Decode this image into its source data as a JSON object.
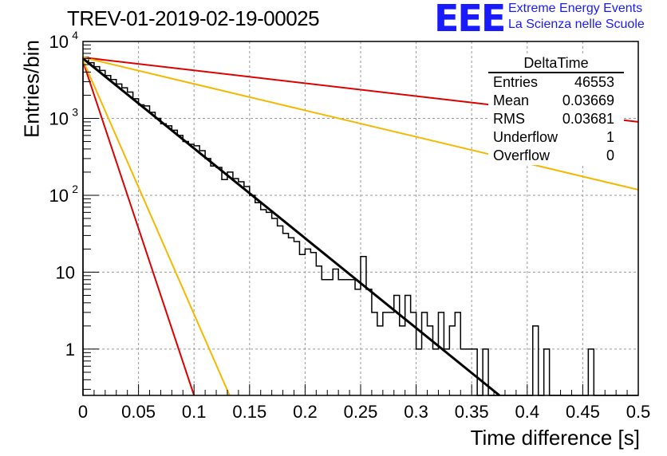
{
  "chart_data": {
    "type": "histogram",
    "title": "TREV-01-2019-02-19-00025",
    "xlabel": "Time difference [s]",
    "ylabel": "Entries/bin",
    "xlim": [
      0,
      0.5
    ],
    "ylim": [
      0.25,
      10000
    ],
    "yscale": "log",
    "grid": true,
    "x_ticks": [
      "0",
      "0.05",
      "0.1",
      "0.15",
      "0.2",
      "0.25",
      "0.3",
      "0.35",
      "0.4",
      "0.45",
      "0.5"
    ],
    "y_ticks": [
      {
        "value": 1,
        "label": "1"
      },
      {
        "value": 10,
        "label": "10"
      },
      {
        "value": 100,
        "label": "10",
        "exp": "2"
      },
      {
        "value": 1000,
        "label": "10",
        "exp": "3"
      },
      {
        "value": 10000,
        "label": "10",
        "exp": "4"
      }
    ],
    "histogram": {
      "bin_width": 0.005,
      "counts": [
        6200,
        5300,
        4700,
        4200,
        3600,
        3200,
        2800,
        2500,
        2200,
        1800,
        1500,
        1450,
        1200,
        1000,
        850,
        800,
        700,
        600,
        500,
        460,
        440,
        380,
        300,
        240,
        230,
        160,
        200,
        165,
        150,
        130,
        100,
        80,
        65,
        60,
        50,
        40,
        32,
        28,
        25,
        17,
        20,
        18,
        12,
        8,
        8,
        11,
        8,
        8,
        8,
        6,
        16,
        6,
        3,
        2,
        3,
        3,
        5,
        2,
        5,
        3,
        1,
        3,
        2,
        1,
        3,
        1,
        2,
        3,
        1,
        1,
        1,
        0,
        1,
        0,
        0,
        0,
        0,
        0,
        0,
        0,
        0,
        2,
        0,
        1,
        0,
        0,
        0,
        0,
        0,
        0,
        0,
        1,
        0,
        0,
        0,
        0,
        0,
        0,
        0,
        0
      ]
    },
    "fits": [
      {
        "color": "#000000",
        "y0": 6000,
        "x1": 0.375,
        "y1": 0.25
      },
      {
        "color": "#dd0000",
        "y0": 6200,
        "x1": 0.5,
        "y1": 900
      },
      {
        "color": "#f5b800",
        "y0": 6200,
        "x1": 0.5,
        "y1": 118
      },
      {
        "color": "#dd0000",
        "y0": 5500,
        "x1": 0.1,
        "y1": 0.25
      },
      {
        "color": "#f5b800",
        "y0": 5700,
        "x1": 0.132,
        "y1": 0.25
      }
    ]
  },
  "logo": {
    "mark": "EEE",
    "line1": "Extreme Energy Events",
    "line2": "La Scienza nelle Scuole"
  },
  "stats": {
    "title": "DeltaTime",
    "rows": [
      {
        "label": "Entries",
        "value": "46553"
      },
      {
        "label": "Mean",
        "value": "0.03669"
      },
      {
        "label": "RMS",
        "value": "0.03681"
      },
      {
        "label": "Underflow",
        "value": "1"
      },
      {
        "label": "Overflow",
        "value": "0"
      }
    ]
  }
}
